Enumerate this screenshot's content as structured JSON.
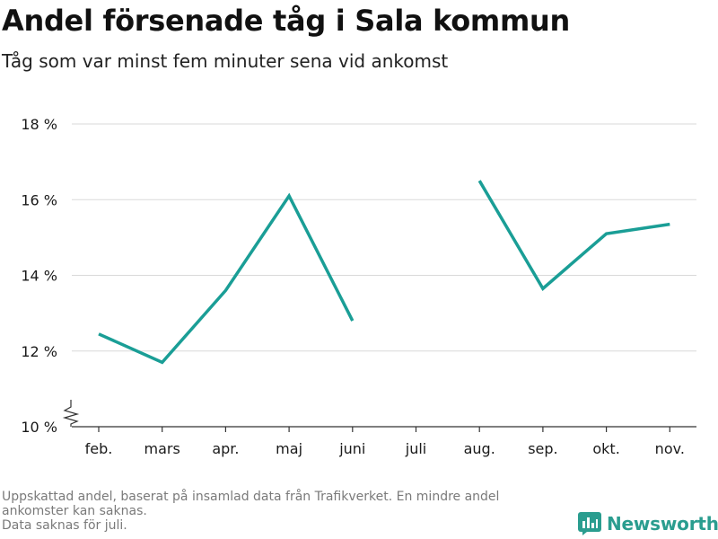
{
  "title": "Andel försenade tåg i Sala kommun",
  "subtitle": "Tåg som var minst fem minuter sena vid ankomst",
  "colors": {
    "line": "#1a9e96",
    "grid": "#d9d9d9",
    "axis": "#333333",
    "text": "#1a1a1a",
    "footnote": "#7a7a7a",
    "brand": "#2a9d8f"
  },
  "chart_data": {
    "type": "line",
    "categories": [
      "feb.",
      "mars",
      "apr.",
      "maj",
      "juni",
      "juli",
      "aug.",
      "sep.",
      "okt.",
      "nov."
    ],
    "series": [
      {
        "values": [
          12.45,
          11.7,
          13.6,
          16.1,
          12.8,
          null,
          16.5,
          13.65,
          15.1,
          15.35
        ]
      }
    ],
    "ylim": [
      10,
      18
    ],
    "yticks": [
      10,
      12,
      14,
      16,
      18
    ],
    "ytick_labels": [
      "10 %",
      "12 %",
      "14 %",
      "16 %",
      "18 %"
    ],
    "y_axis_break": true,
    "grid": true
  },
  "footnote": {
    "line1": "Uppskattad andel, baserat på insamlad data från Trafikverket. En mindre andel",
    "line2": "ankomster kan saknas.",
    "line3": "Data saknas för juli."
  },
  "brand": {
    "name": "Newsworthy",
    "icon": "newsworthy-logo-icon"
  }
}
